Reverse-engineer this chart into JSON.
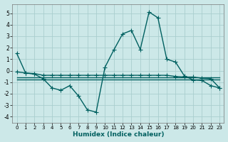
{
  "xlabel": "Humidex (Indice chaleur)",
  "background_color": "#cce8e8",
  "grid_color": "#aacece",
  "line_color": "#006060",
  "xlim": [
    -0.5,
    23.5
  ],
  "ylim": [
    -4.5,
    5.8
  ],
  "yticks": [
    -4,
    -3,
    -2,
    -1,
    0,
    1,
    2,
    3,
    4,
    5
  ],
  "xticks": [
    0,
    1,
    2,
    3,
    4,
    5,
    6,
    7,
    8,
    9,
    10,
    11,
    12,
    13,
    14,
    15,
    16,
    17,
    18,
    19,
    20,
    21,
    22,
    23
  ],
  "series1_x": [
    0,
    1,
    2,
    3,
    4,
    5,
    6,
    7,
    8,
    9,
    10,
    11,
    12,
    13,
    14,
    15,
    16,
    17,
    18,
    19,
    20,
    21,
    22,
    23
  ],
  "series1_y": [
    1.5,
    -0.2,
    -0.3,
    -0.7,
    -1.5,
    -1.7,
    -1.3,
    -2.2,
    -3.4,
    -3.6,
    0.3,
    1.8,
    3.2,
    3.5,
    1.85,
    5.1,
    4.6,
    1.0,
    0.75,
    -0.45,
    -0.8,
    -0.85,
    -1.3,
    -1.5
  ],
  "series2_x": [
    0,
    1,
    2,
    3,
    4,
    5,
    6,
    7,
    8,
    9,
    10,
    11,
    12,
    13,
    14,
    15,
    16,
    17,
    18,
    19,
    20,
    21,
    22,
    23
  ],
  "series2_y": [
    -0.1,
    -0.2,
    -0.25,
    -0.4,
    -0.4,
    -0.4,
    -0.4,
    -0.4,
    -0.4,
    -0.4,
    -0.4,
    -0.4,
    -0.4,
    -0.4,
    -0.4,
    -0.4,
    -0.4,
    -0.4,
    -0.5,
    -0.55,
    -0.55,
    -0.65,
    -0.7,
    -1.5
  ],
  "series3_x": [
    0,
    23
  ],
  "series3_y": [
    -0.6,
    -0.6
  ],
  "series4_x": [
    0,
    23
  ],
  "series4_y": [
    -0.75,
    -0.75
  ],
  "markersize": 2.5,
  "linewidth": 1.0
}
